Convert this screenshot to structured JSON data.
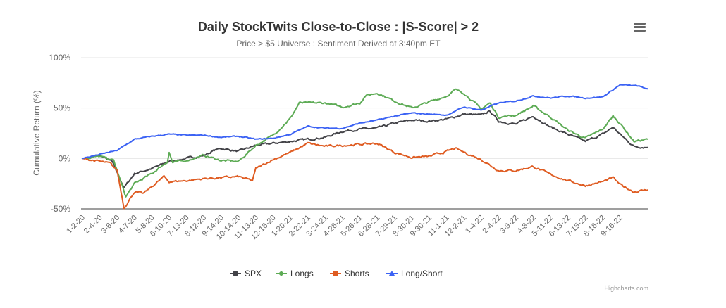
{
  "chart_data": {
    "type": "line",
    "title": "Daily StockTwits Close-to-Close : |S-Score| > 2",
    "subtitle": "Price > $5 Universe : Sentiment Derived at 3:40pm ET",
    "xlabel": "",
    "ylabel": "Cumulative Return (%)",
    "ylim": [
      -50,
      100
    ],
    "yticks": [
      100,
      50,
      0,
      -50
    ],
    "ytick_labels": [
      "100%",
      "50%",
      "0%",
      "-50%"
    ],
    "grid": true,
    "legend_position": "bottom-center",
    "categories": [
      "1-2-20",
      "2-4-20",
      "3-6-20",
      "4-7-20",
      "5-8-20",
      "6-10-20",
      "7-13-20",
      "8-12-20",
      "9-14-20",
      "10-14-20",
      "11-13-20",
      "12-16-20",
      "1-20-21",
      "2-22-21",
      "3-24-21",
      "4-26-21",
      "5-26-21",
      "6-28-21",
      "7-29-21",
      "8-30-21",
      "9-30-21",
      "11-1-21",
      "12-2-21",
      "1-4-22",
      "2-4-22",
      "3-9-22",
      "4-8-22",
      "5-11-22",
      "6-13-22",
      "7-15-22",
      "8-16-22",
      "9-16-22"
    ],
    "x_note": "x values are positions in category index units",
    "series": [
      {
        "name": "SPX",
        "color": "#434348",
        "marker": "circle",
        "points": [
          [
            0,
            0
          ],
          [
            1,
            3
          ],
          [
            1.7,
            -3
          ],
          [
            2.4,
            -29
          ],
          [
            3,
            -15
          ],
          [
            4,
            -10
          ],
          [
            5,
            -3
          ],
          [
            6,
            0
          ],
          [
            7,
            3
          ],
          [
            7.6,
            8
          ],
          [
            8,
            10
          ],
          [
            9,
            7
          ],
          [
            10,
            13
          ],
          [
            11,
            15
          ],
          [
            12,
            17
          ],
          [
            13,
            19
          ],
          [
            14,
            21
          ],
          [
            15,
            27
          ],
          [
            16,
            29
          ],
          [
            17,
            30
          ],
          [
            18,
            35
          ],
          [
            19,
            38
          ],
          [
            20,
            37
          ],
          [
            21,
            39
          ],
          [
            22,
            44
          ],
          [
            23,
            43
          ],
          [
            23.5,
            47
          ],
          [
            24,
            37
          ],
          [
            25,
            34
          ],
          [
            26,
            42
          ],
          [
            27,
            31
          ],
          [
            28,
            24
          ],
          [
            29,
            17
          ],
          [
            30,
            24
          ],
          [
            30.6,
            31
          ],
          [
            31,
            24
          ],
          [
            31.8,
            12
          ],
          [
            32.6,
            11
          ]
        ]
      },
      {
        "name": "Longs",
        "color": "#5dab55",
        "marker": "diamond",
        "points": [
          [
            0,
            0
          ],
          [
            1,
            2
          ],
          [
            1.8,
            -2
          ],
          [
            2.5,
            -38
          ],
          [
            3,
            -25
          ],
          [
            4,
            -15
          ],
          [
            4.9,
            -3
          ],
          [
            5,
            6
          ],
          [
            5.2,
            -4
          ],
          [
            6,
            -2
          ],
          [
            7,
            3
          ],
          [
            8,
            -2
          ],
          [
            9,
            -3
          ],
          [
            10,
            13
          ],
          [
            11,
            23
          ],
          [
            12,
            40
          ],
          [
            12.5,
            55
          ],
          [
            13,
            55
          ],
          [
            14,
            55
          ],
          [
            15,
            51
          ],
          [
            16,
            55
          ],
          [
            16.3,
            62
          ],
          [
            17,
            65
          ],
          [
            18,
            57
          ],
          [
            19,
            50
          ],
          [
            20,
            56
          ],
          [
            21,
            62
          ],
          [
            21.5,
            68
          ],
          [
            22,
            65
          ],
          [
            23,
            49
          ],
          [
            23.5,
            55
          ],
          [
            24,
            41
          ],
          [
            25,
            43
          ],
          [
            26,
            52
          ],
          [
            27,
            41
          ],
          [
            28,
            28
          ],
          [
            29,
            20
          ],
          [
            30,
            29
          ],
          [
            30.6,
            42
          ],
          [
            31,
            35
          ],
          [
            31.8,
            17
          ],
          [
            32.6,
            19
          ]
        ]
      },
      {
        "name": "Shorts",
        "color": "#df5c22",
        "marker": "square",
        "points": [
          [
            0,
            0
          ],
          [
            1,
            -3
          ],
          [
            1.6,
            -5
          ],
          [
            2,
            -12
          ],
          [
            2.4,
            -49
          ],
          [
            3,
            -33
          ],
          [
            3.5,
            -35
          ],
          [
            4,
            -28
          ],
          [
            4.7,
            -18
          ],
          [
            5,
            -23
          ],
          [
            6,
            -22
          ],
          [
            7,
            -20
          ],
          [
            8,
            -19
          ],
          [
            9,
            -18
          ],
          [
            9.8,
            -22
          ],
          [
            10,
            -10
          ],
          [
            11,
            -1
          ],
          [
            12,
            6
          ],
          [
            13,
            15
          ],
          [
            14,
            12
          ],
          [
            15,
            13
          ],
          [
            16,
            14
          ],
          [
            17,
            15
          ],
          [
            18,
            6
          ],
          [
            19,
            1
          ],
          [
            20,
            2
          ],
          [
            21,
            7
          ],
          [
            21.5,
            10
          ],
          [
            22,
            6
          ],
          [
            23,
            -1
          ],
          [
            24,
            -12
          ],
          [
            25,
            -12
          ],
          [
            26,
            -8
          ],
          [
            27,
            -16
          ],
          [
            28,
            -22
          ],
          [
            29,
            -27
          ],
          [
            30,
            -23
          ],
          [
            30.6,
            -19
          ],
          [
            31,
            -26
          ],
          [
            31.8,
            -33
          ],
          [
            32.6,
            -31
          ]
        ]
      },
      {
        "name": "Long/Short",
        "color": "#3b62f4",
        "marker": "triangle",
        "points": [
          [
            0,
            0
          ],
          [
            1,
            4
          ],
          [
            2,
            8
          ],
          [
            3,
            19
          ],
          [
            4,
            22
          ],
          [
            5,
            24
          ],
          [
            6,
            23
          ],
          [
            7,
            23
          ],
          [
            8,
            21
          ],
          [
            9,
            22
          ],
          [
            10,
            19
          ],
          [
            11,
            20
          ],
          [
            12,
            24
          ],
          [
            13,
            32
          ],
          [
            14,
            30
          ],
          [
            15,
            30
          ],
          [
            16,
            35
          ],
          [
            17,
            38
          ],
          [
            18,
            42
          ],
          [
            19,
            45
          ],
          [
            20,
            44
          ],
          [
            21,
            43
          ],
          [
            22,
            51
          ],
          [
            23,
            48
          ],
          [
            24,
            55
          ],
          [
            25,
            57
          ],
          [
            26,
            62
          ],
          [
            27,
            60
          ],
          [
            28,
            62
          ],
          [
            29,
            60
          ],
          [
            30,
            61
          ],
          [
            31,
            73
          ],
          [
            32,
            72
          ],
          [
            32.6,
            69
          ]
        ]
      }
    ]
  },
  "menu": {
    "icon": "hamburger-menu-icon"
  },
  "credits": "Highcharts.com"
}
